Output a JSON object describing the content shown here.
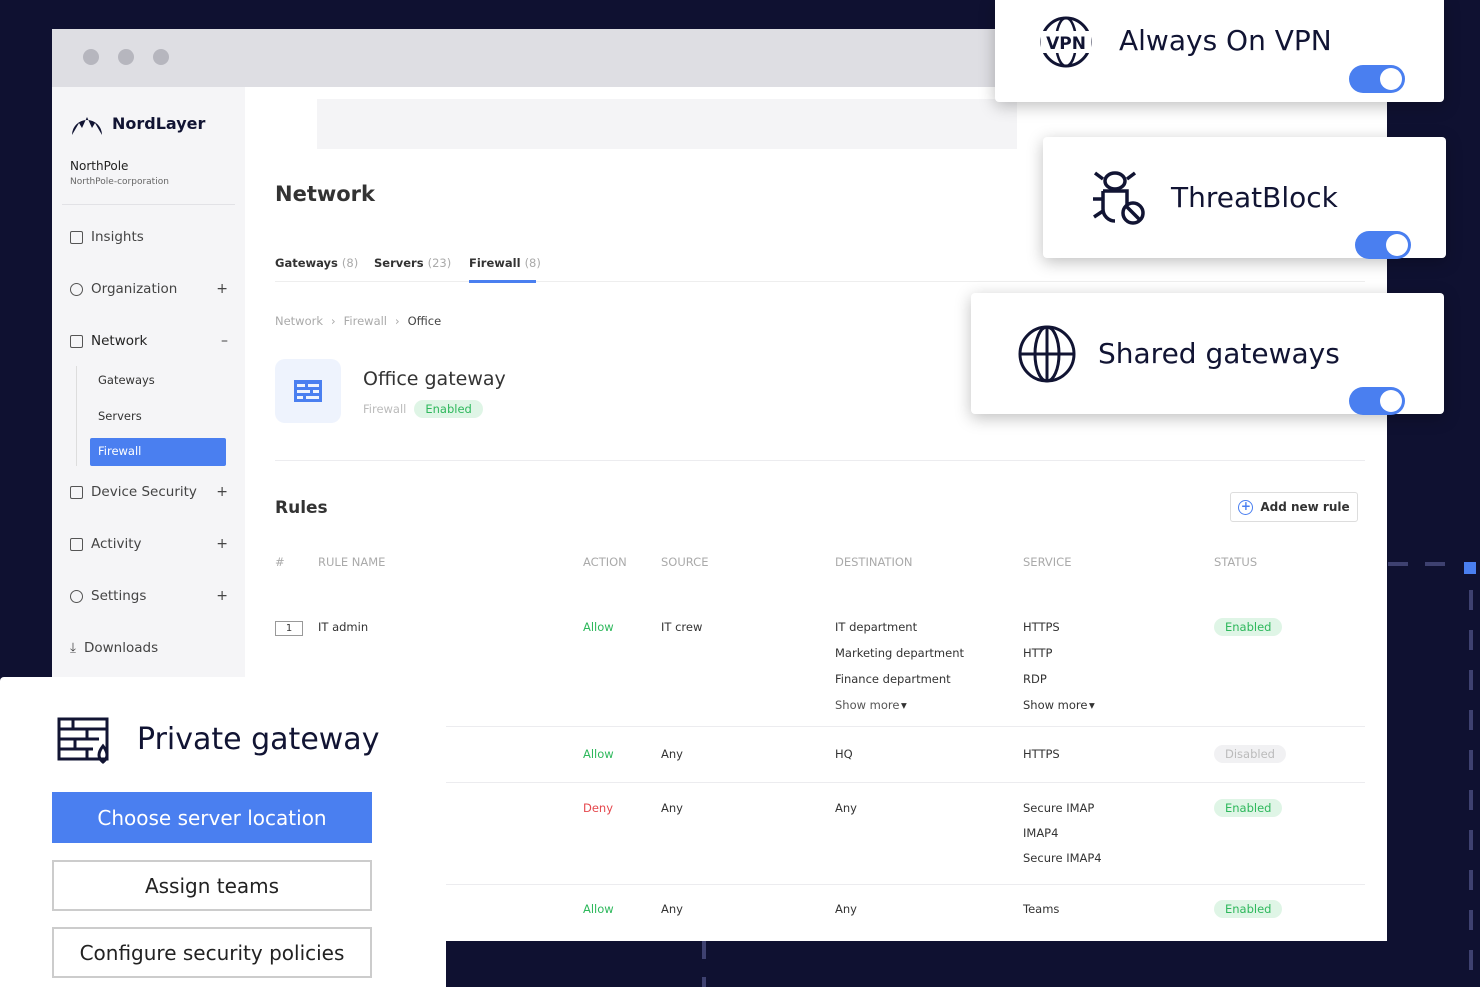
{
  "brand": {
    "name": "NordLayer",
    "org": "NorthPole",
    "org_sub": "NorthPole-corporation"
  },
  "sidebar": {
    "items": [
      {
        "label": "Insights",
        "toggle": ""
      },
      {
        "label": "Organization",
        "toggle": "+"
      },
      {
        "label": "Network",
        "toggle": "–"
      },
      {
        "label": "Device Security",
        "toggle": "+"
      },
      {
        "label": "Activity",
        "toggle": "+"
      },
      {
        "label": "Settings",
        "toggle": "+"
      },
      {
        "label": "Downloads",
        "toggle": ""
      }
    ],
    "network_sub": [
      "Gateways",
      "Servers",
      "Firewall"
    ]
  },
  "page": {
    "title": "Network",
    "tabs": [
      {
        "label": "Gateways",
        "count": "(8)"
      },
      {
        "label": "Servers",
        "count": "(23)"
      },
      {
        "label": "Firewall",
        "count": "(8)"
      }
    ],
    "breadcrumb": [
      "Network",
      "Firewall",
      "Office"
    ],
    "gateway": {
      "title": "Office gateway",
      "type": "Firewall",
      "status": "Enabled"
    },
    "rules_title": "Rules",
    "add_rule": "Add new rule"
  },
  "table": {
    "headers": [
      "#",
      "RULE NAME",
      "ACTION",
      "SOURCE",
      "DESTINATION",
      "SERVICE",
      "STATUS"
    ],
    "rows": [
      {
        "num": "1",
        "name": "IT admin",
        "action": "Allow",
        "source": "IT crew",
        "destination": [
          "IT department",
          "Marketing department",
          "Finance department",
          "Show more"
        ],
        "service": [
          "HTTPS",
          "HTTP",
          "RDP",
          "Show more"
        ],
        "status": "Enabled"
      },
      {
        "num": "",
        "name": "",
        "action": "Allow",
        "source": "Any",
        "destination": [
          "HQ"
        ],
        "service": [
          "HTTPS"
        ],
        "status": "Disabled"
      },
      {
        "num": "",
        "name": "",
        "action": "Deny",
        "source": "Any",
        "destination": [
          "Any"
        ],
        "service": [
          "Secure IMAP",
          "IMAP4",
          "Secure IMAP4"
        ],
        "status": "Enabled"
      },
      {
        "num": "",
        "name": "",
        "action": "Allow",
        "source": "Any",
        "destination": [
          "Any"
        ],
        "service": [
          "Teams"
        ],
        "status": "Enabled"
      }
    ]
  },
  "features": {
    "vpn": "Always On VPN",
    "vpn_icon_text": "VPN",
    "threat": "ThreatBlock",
    "shared": "Shared gateways"
  },
  "private": {
    "title": "Private gateway",
    "choose": "Choose server location",
    "assign": "Assign teams",
    "configure": "Configure security policies"
  },
  "colors": {
    "accent": "#4a7ff0",
    "background": "#0f1131",
    "enabled": "#2eb85c",
    "deny": "#e5484d"
  }
}
